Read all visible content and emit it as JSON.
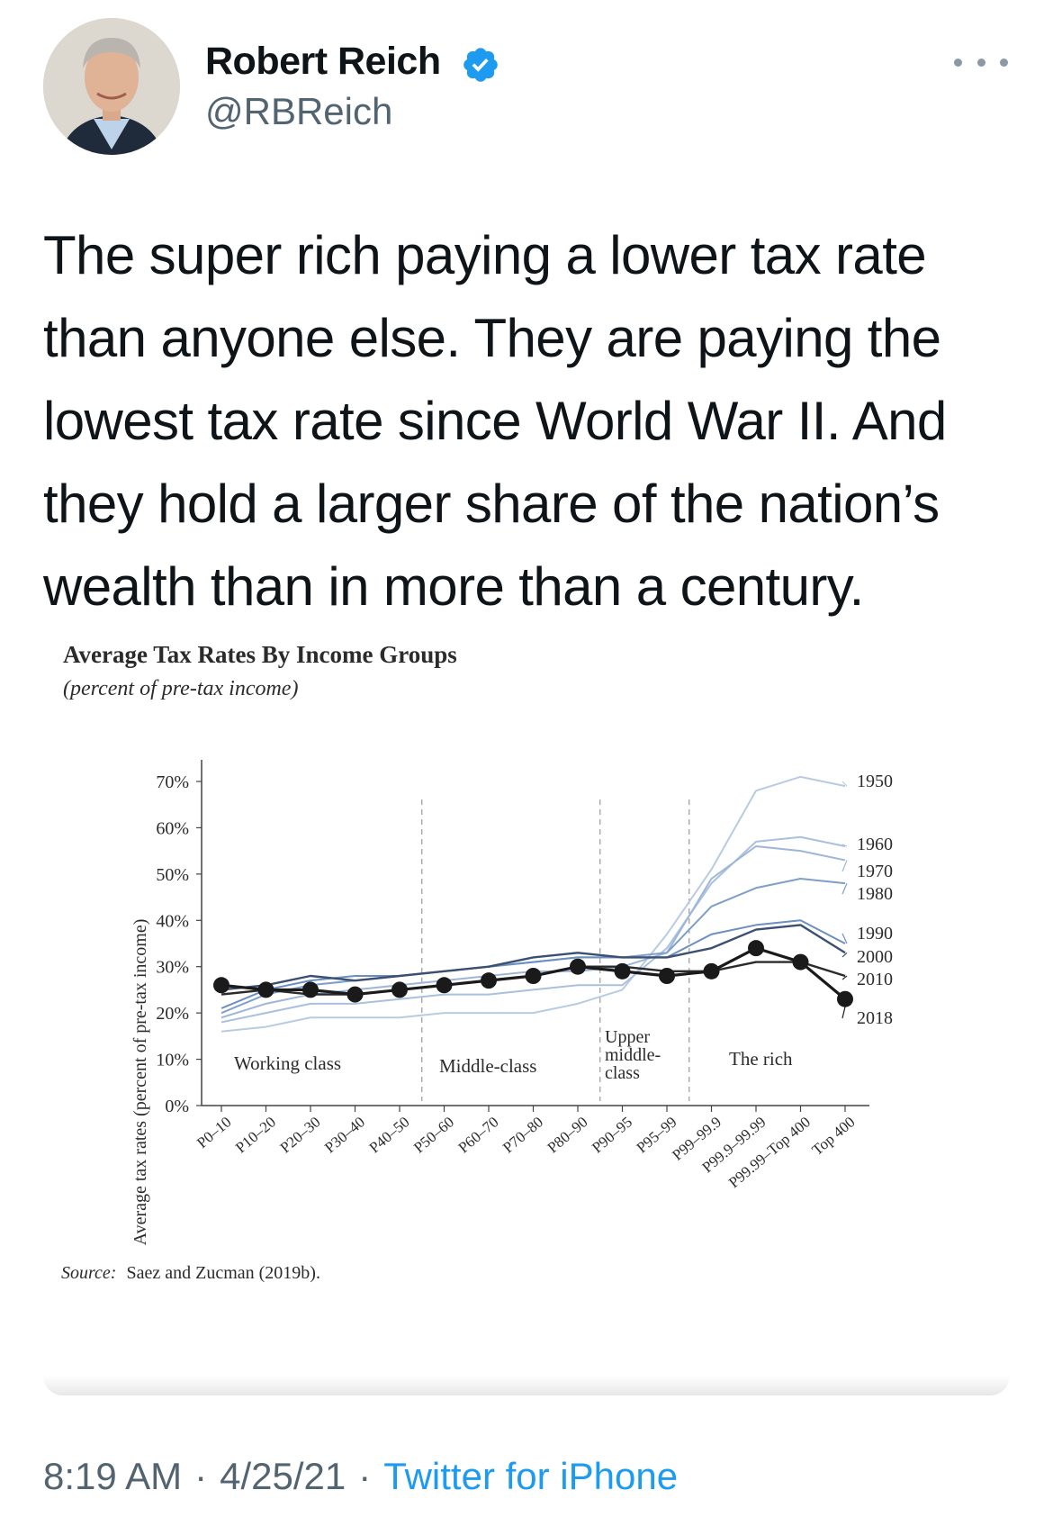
{
  "tweet": {
    "author_name": "Robert Reich",
    "author_handle": "@RBReich",
    "verified": true,
    "text": "The super rich paying a lower tax rate than anyone else. They are paying the lowest tax rate since World War II. And they hold a larger share of the nation’s wealth than in more than a century.",
    "time": "8:19 AM",
    "date": "4/25/21",
    "separator": "·",
    "source": "Twitter for iPhone"
  },
  "icons": {
    "avatar": "avatar-photo",
    "verified": "verified-badge-icon",
    "more": "more-options-icon"
  },
  "colors": {
    "accent": "#1d9bf0",
    "muted": "#536471",
    "text": "#0f1419"
  },
  "chart_data": {
    "type": "line",
    "title": "Average Tax Rates By Income Groups",
    "subtitle": "(percent of pre-tax income)",
    "ylabel": "Average tax rates (percent of pre-tax income)",
    "xlabel": "",
    "ylim": [
      0,
      70
    ],
    "yticks": [
      "0%",
      "10%",
      "20%",
      "30%",
      "40%",
      "50%",
      "60%",
      "70%"
    ],
    "categories": [
      "P0–10",
      "P10–20",
      "P20–30",
      "P30–40",
      "P40–50",
      "P50–60",
      "P60–70",
      "P70–80",
      "P80–90",
      "P90–95",
      "P95–99",
      "P99–99.9",
      "P99.9–99.99",
      "P99.99–Top 400",
      "Top 400"
    ],
    "groups": [
      {
        "label": "Working class",
        "from": 0,
        "to": 4
      },
      {
        "label": "Middle-class",
        "from": 5,
        "to": 8
      },
      {
        "label": "Upper middle-class",
        "from": 9,
        "to": 10
      },
      {
        "label": "The rich",
        "from": 11,
        "to": 14
      }
    ],
    "group_labels": [
      "Working class",
      "Middle-class",
      "Upper",
      "middle-",
      "class",
      "The rich"
    ],
    "series": [
      {
        "name": "1950",
        "values": [
          16,
          17,
          19,
          19,
          19,
          20,
          20,
          20,
          22,
          25,
          37,
          51,
          68,
          71,
          69
        ],
        "color": "#b8cbe2"
      },
      {
        "name": "1960",
        "values": [
          18,
          20,
          22,
          22,
          23,
          24,
          24,
          25,
          26,
          26,
          34,
          48,
          57,
          58,
          56
        ],
        "color": "#a9c0de"
      },
      {
        "name": "1970",
        "values": [
          19,
          22,
          24,
          25,
          26,
          27,
          28,
          29,
          29,
          30,
          33,
          49,
          56,
          55,
          53
        ],
        "color": "#9db6d8"
      },
      {
        "name": "1980",
        "values": [
          20,
          24,
          26,
          27,
          28,
          29,
          30,
          31,
          32,
          32,
          33,
          43,
          47,
          49,
          48
        ],
        "color": "#7e9fc9"
      },
      {
        "name": "1990",
        "values": [
          21,
          25,
          27,
          28,
          28,
          29,
          30,
          31,
          32,
          32,
          32,
          37,
          39,
          40,
          35
        ],
        "color": "#6b8fc0"
      },
      {
        "name": "2000",
        "values": [
          25,
          26,
          28,
          27,
          28,
          29,
          30,
          32,
          33,
          32,
          32,
          34,
          38,
          39,
          33
        ],
        "color": "#3b4f72"
      },
      {
        "name": "2010",
        "values": [
          24,
          25,
          24,
          24,
          25,
          26,
          27,
          28,
          30,
          30,
          29,
          29,
          31,
          31,
          28
        ],
        "color": "#2b2b2b"
      },
      {
        "name": "2018",
        "values": [
          26,
          25,
          25,
          24,
          25,
          26,
          27,
          28,
          30,
          29,
          28,
          29,
          34,
          31,
          23
        ],
        "color": "#1a1a1a"
      }
    ],
    "source_prefix": "Source:",
    "source_text": "Saez and Zucman (2019b).",
    "grid": false,
    "legend": "right, labels at line ends"
  }
}
